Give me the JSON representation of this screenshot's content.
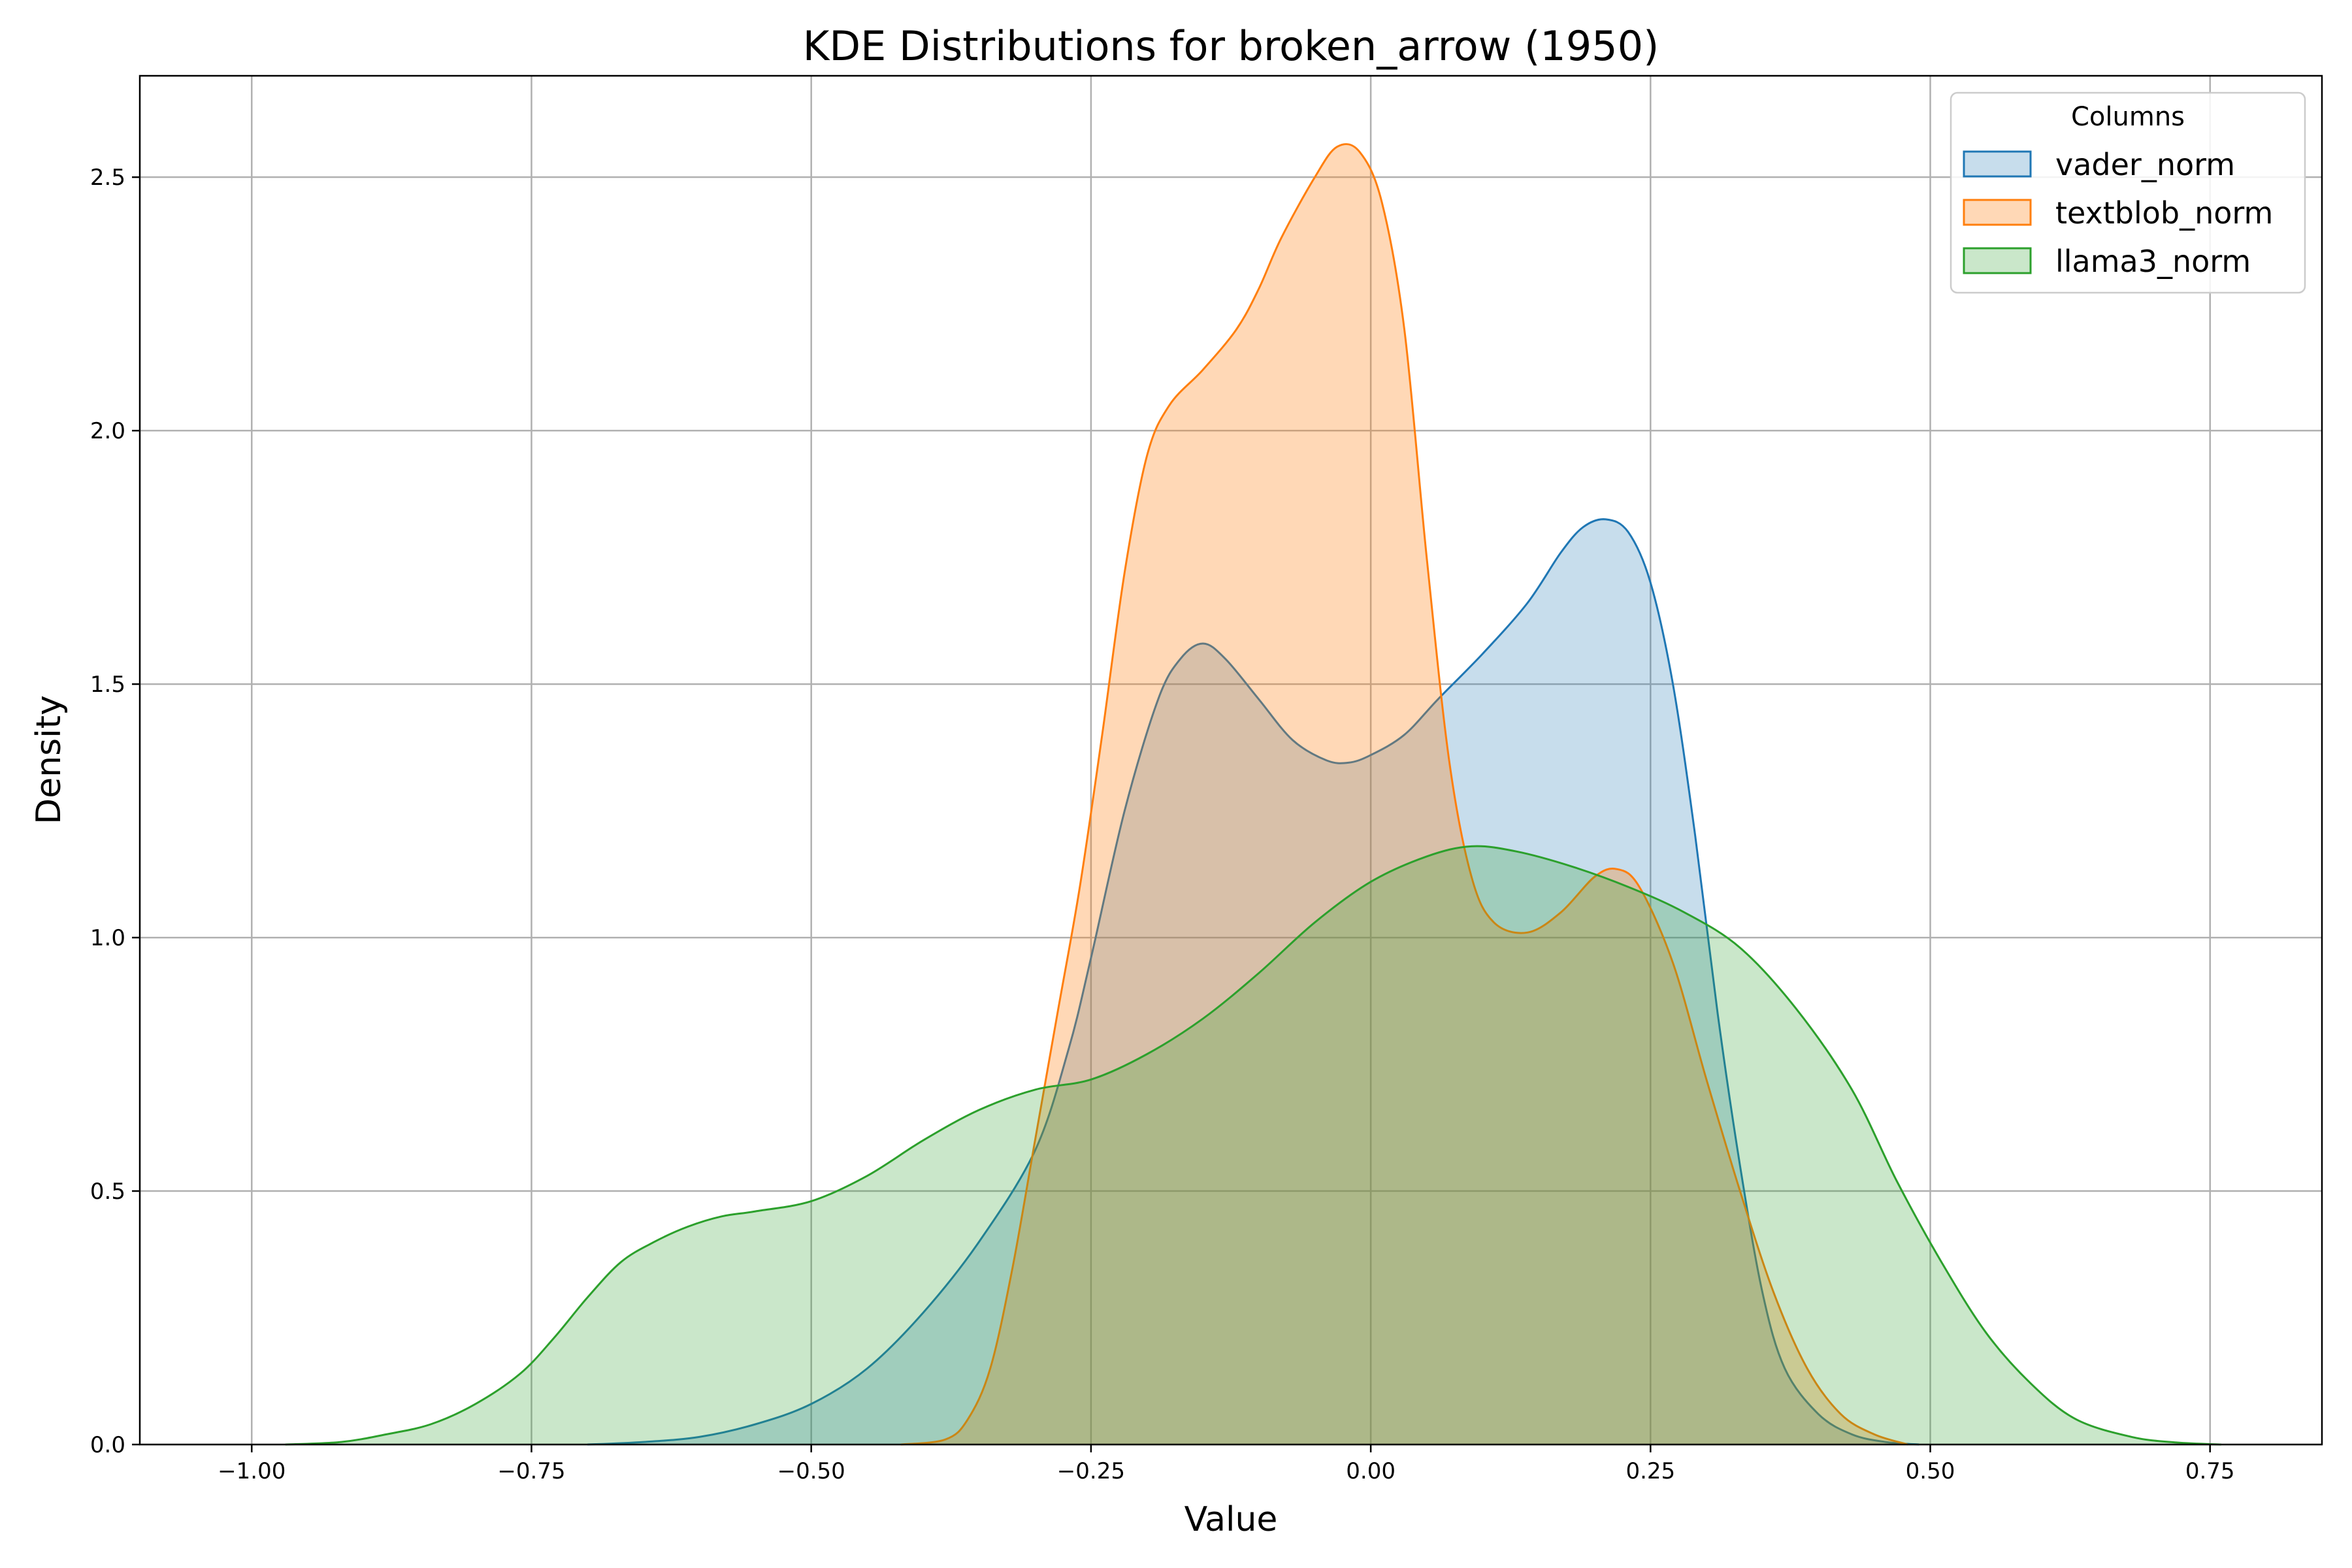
{
  "chart_data": {
    "type": "area",
    "title": "KDE Distributions for broken_arrow (1950)",
    "xlabel": "Value",
    "ylabel": "Density",
    "xlim": [
      -1.1,
      0.85
    ],
    "ylim": [
      0,
      2.7
    ],
    "xticks": [
      -1.0,
      -0.75,
      -0.5,
      -0.25,
      0.0,
      0.25,
      0.5,
      0.75
    ],
    "xtick_labels": [
      "−1.00",
      "−0.75",
      "−0.50",
      "−0.25",
      "0.00",
      "0.25",
      "0.50",
      "0.75"
    ],
    "yticks": [
      0.0,
      0.5,
      1.0,
      1.5,
      2.0,
      2.5
    ],
    "ytick_labels": [
      "0.0",
      "0.5",
      "1.0",
      "1.5",
      "2.0",
      "2.5"
    ],
    "grid": true,
    "legend": {
      "title": "Columns",
      "position": "top-right"
    },
    "series": [
      {
        "name": "vader_norm",
        "color": "#1f77b4",
        "fill_opacity": 0.25,
        "points": [
          [
            -0.7,
            0.0
          ],
          [
            -0.65,
            0.005
          ],
          [
            -0.6,
            0.015
          ],
          [
            -0.55,
            0.04
          ],
          [
            -0.5,
            0.08
          ],
          [
            -0.45,
            0.15
          ],
          [
            -0.4,
            0.26
          ],
          [
            -0.35,
            0.4
          ],
          [
            -0.3,
            0.58
          ],
          [
            -0.27,
            0.78
          ],
          [
            -0.25,
            0.96
          ],
          [
            -0.22,
            1.25
          ],
          [
            -0.19,
            1.47
          ],
          [
            -0.17,
            1.55
          ],
          [
            -0.15,
            1.58
          ],
          [
            -0.13,
            1.55
          ],
          [
            -0.1,
            1.47
          ],
          [
            -0.07,
            1.39
          ],
          [
            -0.04,
            1.35
          ],
          [
            -0.02,
            1.345
          ],
          [
            0.0,
            1.36
          ],
          [
            0.03,
            1.4
          ],
          [
            0.06,
            1.47
          ],
          [
            0.1,
            1.56
          ],
          [
            0.14,
            1.66
          ],
          [
            0.17,
            1.76
          ],
          [
            0.19,
            1.81
          ],
          [
            0.21,
            1.825
          ],
          [
            0.23,
            1.8
          ],
          [
            0.25,
            1.7
          ],
          [
            0.27,
            1.5
          ],
          [
            0.29,
            1.2
          ],
          [
            0.31,
            0.85
          ],
          [
            0.33,
            0.55
          ],
          [
            0.35,
            0.3
          ],
          [
            0.37,
            0.15
          ],
          [
            0.4,
            0.06
          ],
          [
            0.43,
            0.02
          ],
          [
            0.46,
            0.005
          ],
          [
            0.49,
            0.0
          ]
        ]
      },
      {
        "name": "textblob_norm",
        "color": "#ff7f0e",
        "fill_opacity": 0.3,
        "points": [
          [
            -0.42,
            0.0
          ],
          [
            -0.38,
            0.01
          ],
          [
            -0.36,
            0.05
          ],
          [
            -0.34,
            0.15
          ],
          [
            -0.32,
            0.35
          ],
          [
            -0.3,
            0.6
          ],
          [
            -0.28,
            0.85
          ],
          [
            -0.26,
            1.1
          ],
          [
            -0.24,
            1.4
          ],
          [
            -0.22,
            1.72
          ],
          [
            -0.2,
            1.95
          ],
          [
            -0.18,
            2.05
          ],
          [
            -0.15,
            2.12
          ],
          [
            -0.12,
            2.2
          ],
          [
            -0.1,
            2.28
          ],
          [
            -0.08,
            2.38
          ],
          [
            -0.05,
            2.5
          ],
          [
            -0.03,
            2.56
          ],
          [
            -0.01,
            2.55
          ],
          [
            0.01,
            2.45
          ],
          [
            0.03,
            2.2
          ],
          [
            0.05,
            1.75
          ],
          [
            0.07,
            1.35
          ],
          [
            0.09,
            1.12
          ],
          [
            0.11,
            1.03
          ],
          [
            0.14,
            1.01
          ],
          [
            0.17,
            1.05
          ],
          [
            0.2,
            1.12
          ],
          [
            0.22,
            1.135
          ],
          [
            0.24,
            1.1
          ],
          [
            0.27,
            0.95
          ],
          [
            0.3,
            0.72
          ],
          [
            0.33,
            0.5
          ],
          [
            0.36,
            0.3
          ],
          [
            0.39,
            0.15
          ],
          [
            0.42,
            0.06
          ],
          [
            0.45,
            0.02
          ],
          [
            0.48,
            0.0
          ]
        ]
      },
      {
        "name": "llama3_norm",
        "color": "#2ca02c",
        "fill_opacity": 0.25,
        "points": [
          [
            -0.97,
            0.0
          ],
          [
            -0.92,
            0.005
          ],
          [
            -0.88,
            0.02
          ],
          [
            -0.84,
            0.04
          ],
          [
            -0.8,
            0.08
          ],
          [
            -0.76,
            0.14
          ],
          [
            -0.73,
            0.21
          ],
          [
            -0.7,
            0.29
          ],
          [
            -0.67,
            0.36
          ],
          [
            -0.64,
            0.4
          ],
          [
            -0.61,
            0.43
          ],
          [
            -0.58,
            0.45
          ],
          [
            -0.55,
            0.46
          ],
          [
            -0.5,
            0.48
          ],
          [
            -0.45,
            0.53
          ],
          [
            -0.4,
            0.6
          ],
          [
            -0.35,
            0.66
          ],
          [
            -0.3,
            0.7
          ],
          [
            -0.25,
            0.72
          ],
          [
            -0.2,
            0.77
          ],
          [
            -0.15,
            0.84
          ],
          [
            -0.1,
            0.93
          ],
          [
            -0.05,
            1.03
          ],
          [
            0.0,
            1.11
          ],
          [
            0.05,
            1.16
          ],
          [
            0.09,
            1.18
          ],
          [
            0.13,
            1.17
          ],
          [
            0.18,
            1.14
          ],
          [
            0.23,
            1.1
          ],
          [
            0.28,
            1.05
          ],
          [
            0.33,
            0.98
          ],
          [
            0.38,
            0.86
          ],
          [
            0.43,
            0.7
          ],
          [
            0.47,
            0.52
          ],
          [
            0.51,
            0.36
          ],
          [
            0.55,
            0.22
          ],
          [
            0.59,
            0.12
          ],
          [
            0.63,
            0.05
          ],
          [
            0.68,
            0.015
          ],
          [
            0.72,
            0.004
          ],
          [
            0.76,
            0.0
          ]
        ]
      }
    ]
  }
}
